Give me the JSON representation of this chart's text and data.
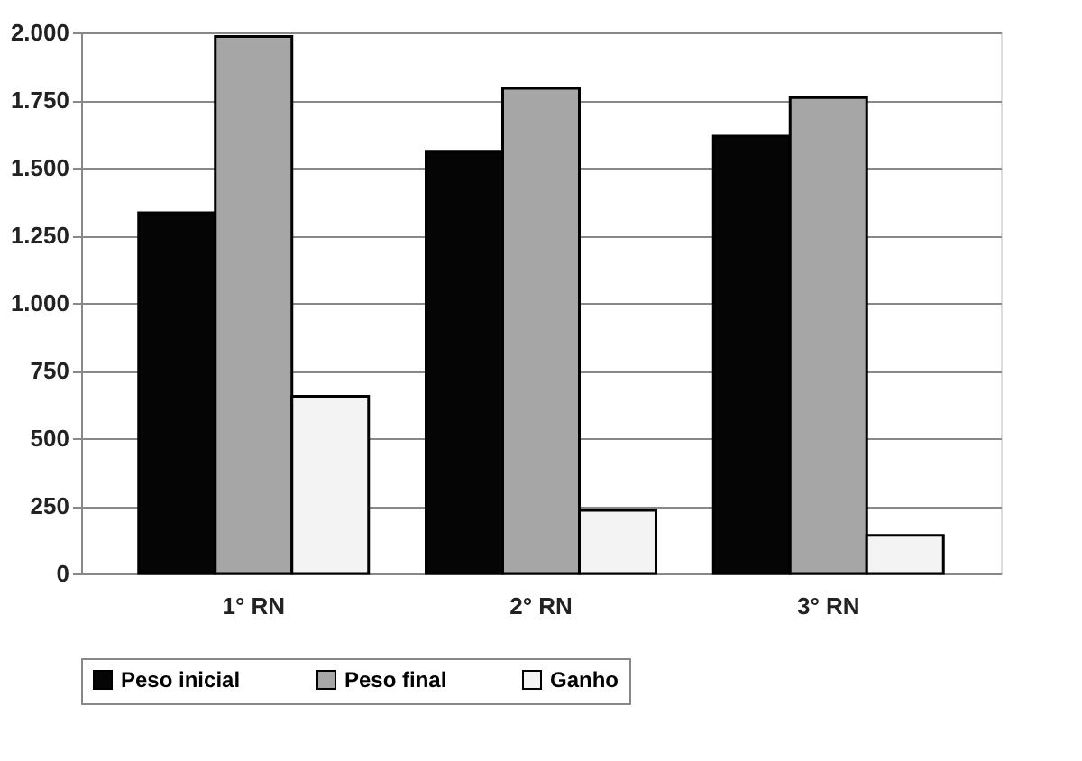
{
  "chart_data": {
    "type": "bar",
    "categories": [
      "1° RN",
      "2° RN",
      "3° RN"
    ],
    "series": [
      {
        "name": "Peso inicial",
        "color": "#050505",
        "values": [
          1333,
          1561,
          1617
        ]
      },
      {
        "name": "Peso final",
        "color": "#a6a6a6",
        "values": [
          1985,
          1793,
          1759
        ]
      },
      {
        "name": "Ganho",
        "color": "#f2f3f2",
        "values": [
          655,
          233,
          141
        ]
      }
    ],
    "ylim": [
      0,
      2000
    ],
    "yticks": [
      0,
      250,
      500,
      750,
      {
        "value": 1000,
        "label": "1.000"
      },
      {
        "value": 1250,
        "label": "1.250"
      },
      {
        "value": 1500,
        "label": "1.500"
      },
      {
        "value": 1750,
        "label": "1.750"
      },
      {
        "value": 2000,
        "label": "2.000"
      }
    ],
    "grid": "y",
    "legend": "bottom"
  }
}
